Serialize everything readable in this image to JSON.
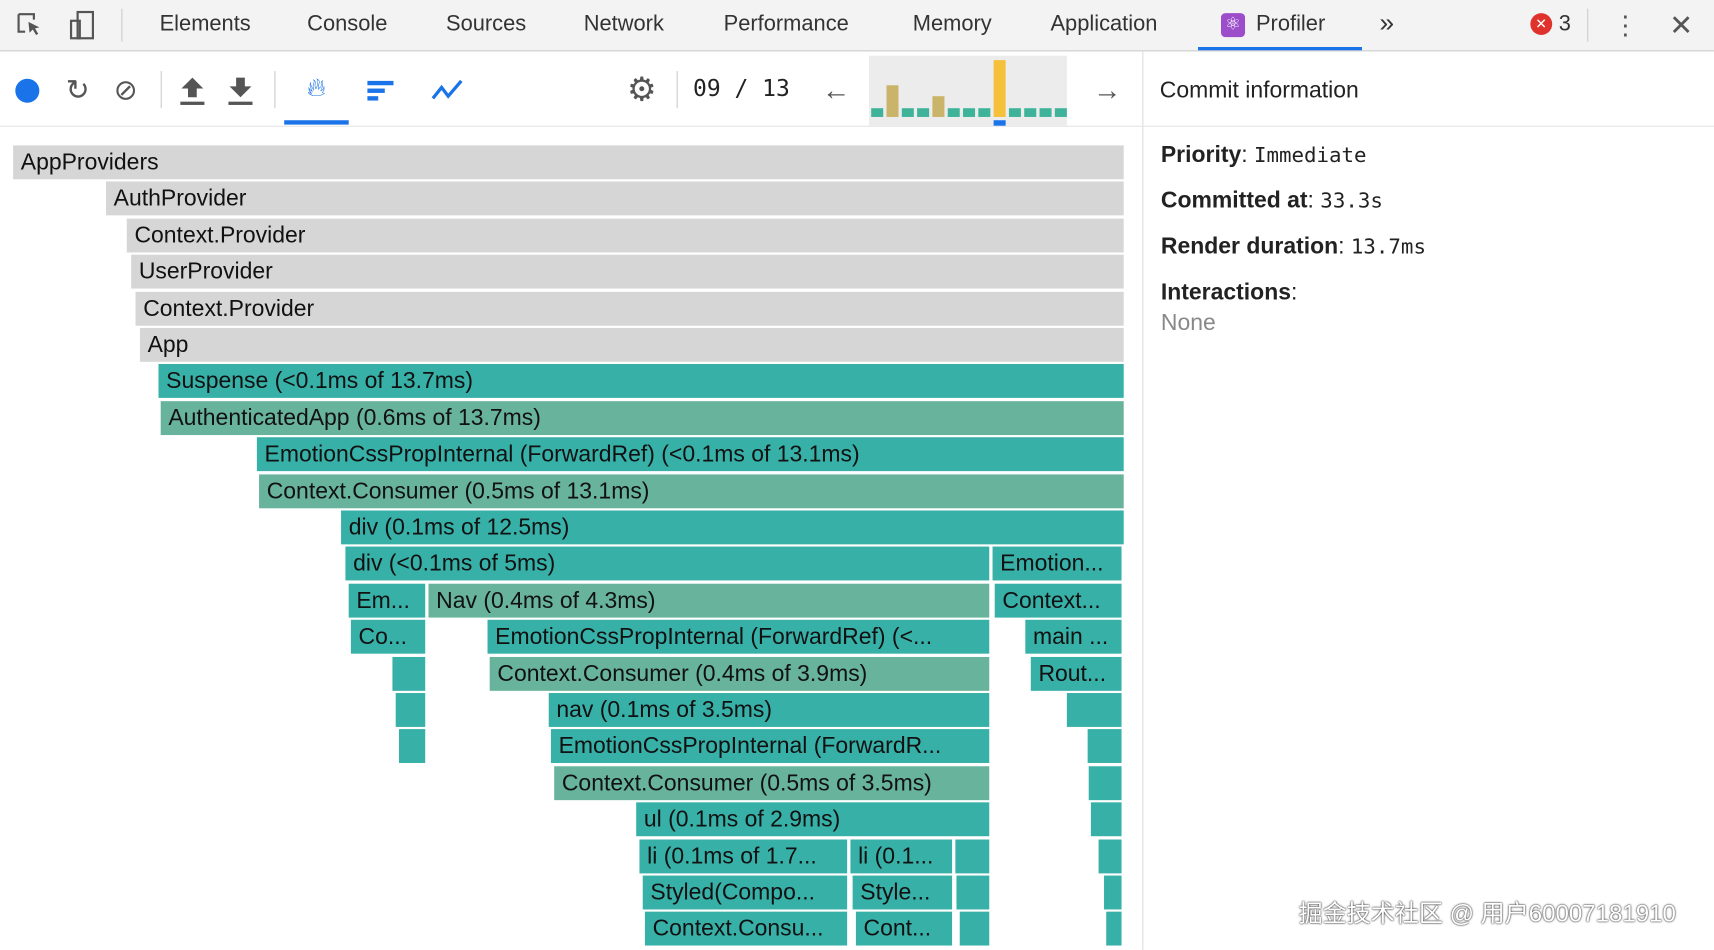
{
  "devtools_tabs": [
    "Elements",
    "Console",
    "Sources",
    "Network",
    "Performance",
    "Memory",
    "Application",
    "Profiler"
  ],
  "more_tabs_label": "»",
  "error_count": "3",
  "profiler": {
    "commit_counter": "09 / 13",
    "commit_durations": [
      1,
      9,
      1,
      1,
      6,
      1,
      1,
      1,
      16,
      1,
      1,
      1,
      1
    ],
    "selected_commit_index": 8,
    "colors": {
      "grey": "#d6d6d6",
      "teal": "#37b0a8",
      "green": "#68b39b",
      "selected": "#f5c03a",
      "accent": "#1a73e8"
    }
  },
  "commit_info": {
    "title": "Commit information",
    "priority_label": "Priority",
    "priority_value": "Immediate",
    "committed_label": "Committed at",
    "committed_value": "33.3s",
    "render_label": "Render duration",
    "render_value": "13.7ms",
    "interactions_label": "Interactions",
    "interactions_value": "None"
  },
  "flame": [
    "AppProviders",
    "AuthProvider",
    "Context.Provider",
    "UserProvider",
    "Context.Provider",
    "App",
    "Suspense (<0.1ms of 13.7ms)",
    "AuthenticatedApp (0.6ms of 13.7ms)",
    "EmotionCssPropInternal (ForwardRef) (<0.1ms of 13.1ms)",
    "Context.Consumer (0.5ms of 13.1ms)",
    "div (0.1ms of 12.5ms)",
    "div (<0.1ms of 5ms)",
    "Emotion...",
    "Em...",
    "Nav (0.4ms of 4.3ms)",
    "Context...",
    "Co...",
    "EmotionCssPropInternal (ForwardRef) (<...",
    "main ...",
    "Context.Consumer (0.4ms of 3.9ms)",
    "Rout...",
    "nav (0.1ms of 3.5ms)",
    "EmotionCssPropInternal (ForwardR...",
    "Context.Consumer (0.5ms of 3.5ms)",
    "ul (0.1ms of 2.9ms)",
    "li (0.1ms of 1.7...",
    "li (0.1...",
    "Styled(Compo...",
    "Style...",
    "Context.Consu...",
    "Cont..."
  ],
  "watermark": "掘金技术社区 @ 用户60007181910"
}
